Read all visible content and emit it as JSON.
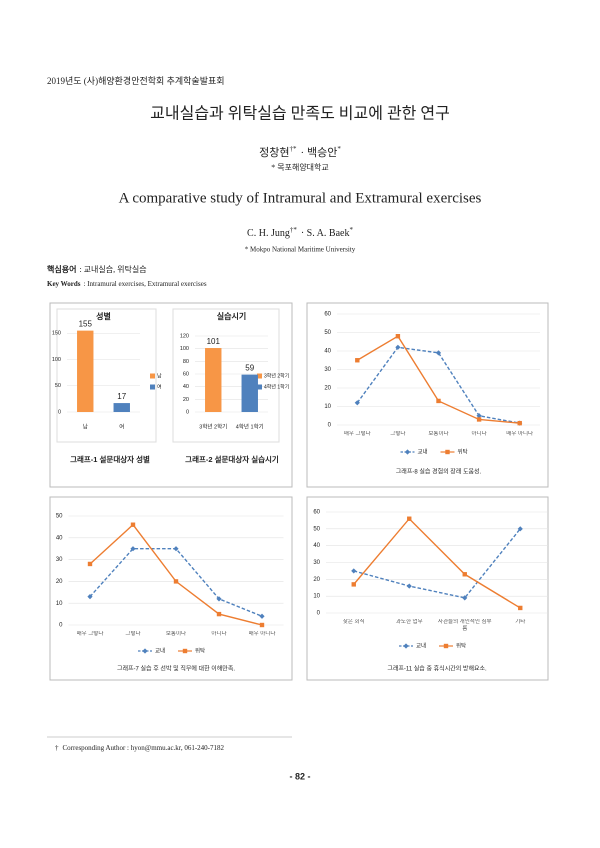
{
  "header": "2019년도 (사)해양환경안전학회 추계학술발표회",
  "title": "교내실습과 위탁실습 만족도 비교에 관한 연구",
  "authors": [
    {
      "name": "정창현",
      "mark": "†*"
    },
    {
      "name": "· 백승안",
      "mark": "*"
    }
  ],
  "affiliation": "* 목포해양대학교",
  "title_en": "A comparative study of Intramural and Extramural exercises",
  "authors_en": [
    {
      "name": "C. H. Jung",
      "mark": "†*"
    },
    {
      "name": "· S. A. Baek",
      "mark": "*"
    }
  ],
  "affiliation_en": "* Mokpo National Maritime University",
  "keywords": {
    "label": "핵심용어",
    "text": ": 교내실습, 위탁실습"
  },
  "keywords_en": {
    "label": "Key Words",
    "text": ": Intramural exercises, Extramural exercises"
  },
  "chart_data": [
    {
      "type": "bar",
      "title": "성별",
      "categories": [
        "남",
        "여"
      ],
      "values": [
        155,
        17
      ],
      "colors": [
        "#f79646",
        "#4f81bd"
      ],
      "ylim": [
        0,
        160
      ],
      "yticks": [
        0,
        50,
        100,
        150
      ],
      "grid": true,
      "legend": true,
      "caption": "그래프-1 설문대상자 성별"
    },
    {
      "type": "bar",
      "title": "실습시기",
      "categories": [
        "3학년 2학기",
        "4학년 1학기"
      ],
      "values": [
        101,
        59
      ],
      "colors": [
        "#f79646",
        "#4f81bd"
      ],
      "ylim": [
        0,
        120
      ],
      "yticks": [
        0,
        20,
        40,
        60,
        80,
        100,
        120
      ],
      "grid": true,
      "legend": true,
      "caption": "그래프-2 설문대상자 실습시기"
    },
    {
      "type": "line",
      "categories": [
        "매우 그렇다",
        "그렇다",
        "보통이다",
        "아니다",
        "매우 아니다"
      ],
      "series": [
        {
          "name": "교내",
          "color": "#4f81bd",
          "style": "dashed",
          "marker": "diamond",
          "values": [
            12,
            42,
            39,
            5,
            1
          ]
        },
        {
          "name": "위탁",
          "color": "#ed7d31",
          "style": "solid",
          "marker": "square",
          "values": [
            35,
            48,
            13,
            3,
            1
          ]
        }
      ],
      "ylim": [
        0,
        60
      ],
      "yticks": [
        0,
        10,
        20,
        30,
        40,
        50,
        60
      ],
      "grid": true,
      "legend": "bottom",
      "caption": "그래프-8 실습 경험의 장래 도움성."
    },
    {
      "type": "line",
      "categories": [
        "매우 그렇다",
        "그렇다",
        "보통이다",
        "아니다",
        "매우 아니다"
      ],
      "series": [
        {
          "name": "교내",
          "color": "#4f81bd",
          "style": "dashed",
          "marker": "diamond",
          "values": [
            13,
            35,
            35,
            12,
            4
          ]
        },
        {
          "name": "위탁",
          "color": "#ed7d31",
          "style": "solid",
          "marker": "square",
          "values": [
            28,
            46,
            20,
            5,
            0
          ]
        }
      ],
      "ylim": [
        0,
        50
      ],
      "yticks": [
        0,
        10,
        20,
        30,
        40,
        50
      ],
      "grid": true,
      "legend": "bottom",
      "caption": "그래프-7 실습 후 선박 및 직무에 대한 이해만족."
    },
    {
      "type": "line",
      "categories": [
        "잦은 회식",
        "과도한 업무",
        "사관들의 개인적인 심부름",
        "기타"
      ],
      "series": [
        {
          "name": "교내",
          "color": "#4f81bd",
          "style": "dashed",
          "marker": "diamond",
          "values": [
            25,
            16,
            9,
            50
          ]
        },
        {
          "name": "위탁",
          "color": "#ed7d31",
          "style": "solid",
          "marker": "square",
          "values": [
            17,
            56,
            23,
            3
          ]
        }
      ],
      "ylim": [
        0,
        60
      ],
      "yticks": [
        0,
        10,
        20,
        30,
        40,
        50,
        60
      ],
      "grid": true,
      "legend": "bottom",
      "caption": "그래프-11 실습 중 휴식시간의 방해요소."
    }
  ],
  "footnote": {
    "mark": "†",
    "text": "Corresponding Author : hyon@mmu.ac.kr, 061-240-7182"
  },
  "page_number": "- 82 -"
}
